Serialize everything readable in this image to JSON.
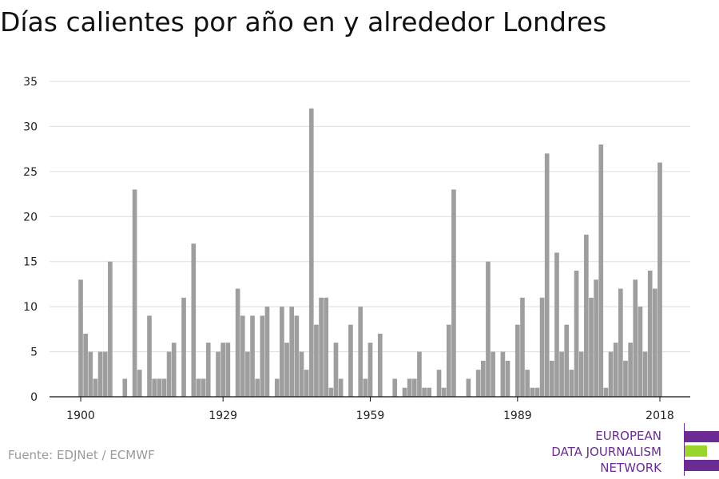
{
  "chart_data": {
    "type": "bar",
    "title": "Días calientes por año en y alrededor Londres",
    "xlabel": "",
    "ylabel": "",
    "xlim": [
      1900,
      2018
    ],
    "ylim": [
      0,
      35
    ],
    "yticks": [
      0,
      5,
      10,
      15,
      20,
      25,
      30,
      35
    ],
    "xticks": [
      1900,
      1929,
      1959,
      1989,
      2018
    ],
    "grid": "horizontal",
    "bar_color": "#9e9e9e",
    "x": [
      1900,
      1901,
      1902,
      1903,
      1904,
      1905,
      1906,
      1907,
      1908,
      1909,
      1910,
      1911,
      1912,
      1913,
      1914,
      1915,
      1916,
      1917,
      1918,
      1919,
      1920,
      1921,
      1922,
      1923,
      1924,
      1925,
      1926,
      1927,
      1928,
      1929,
      1930,
      1931,
      1932,
      1933,
      1934,
      1935,
      1936,
      1937,
      1938,
      1939,
      1940,
      1941,
      1942,
      1943,
      1944,
      1945,
      1946,
      1947,
      1948,
      1949,
      1950,
      1951,
      1952,
      1953,
      1954,
      1955,
      1956,
      1957,
      1958,
      1959,
      1960,
      1961,
      1962,
      1963,
      1964,
      1965,
      1966,
      1967,
      1968,
      1969,
      1970,
      1971,
      1972,
      1973,
      1974,
      1975,
      1976,
      1977,
      1978,
      1979,
      1980,
      1981,
      1982,
      1983,
      1984,
      1985,
      1986,
      1987,
      1988,
      1989,
      1990,
      1991,
      1992,
      1993,
      1994,
      1995,
      1996,
      1997,
      1998,
      1999,
      2000,
      2001,
      2002,
      2003,
      2004,
      2005,
      2006,
      2007,
      2008,
      2009,
      2010,
      2011,
      2012,
      2013,
      2014,
      2015,
      2016,
      2017,
      2018
    ],
    "values": [
      13,
      7,
      5,
      2,
      5,
      5,
      15,
      0,
      0,
      2,
      0,
      23,
      3,
      0,
      9,
      2,
      2,
      2,
      5,
      6,
      0,
      11,
      0,
      17,
      2,
      2,
      6,
      0,
      5,
      6,
      6,
      0,
      12,
      9,
      5,
      9,
      2,
      9,
      10,
      0,
      2,
      10,
      6,
      10,
      9,
      5,
      3,
      32,
      8,
      11,
      11,
      1,
      6,
      2,
      0,
      8,
      0,
      10,
      2,
      6,
      0,
      7,
      0,
      0,
      2,
      0,
      1,
      2,
      2,
      5,
      1,
      1,
      0,
      3,
      1,
      8,
      23,
      0,
      0,
      2,
      0,
      3,
      4,
      15,
      5,
      0,
      5,
      4,
      0,
      8,
      11,
      3,
      1,
      1,
      11,
      27,
      4,
      16,
      5,
      8,
      3,
      14,
      5,
      18,
      11,
      13,
      28,
      1,
      5,
      6,
      12,
      4,
      6,
      13,
      10,
      5,
      14,
      12,
      26
    ]
  },
  "source": "Fuente: EDJNet / ECMWF",
  "logo": {
    "line1": "EUROPEAN",
    "line2": "DATA JOURNALISM",
    "line3": "NETWORK",
    "color_primary": "#6b2c93",
    "color_accent": "#9bd42b"
  }
}
